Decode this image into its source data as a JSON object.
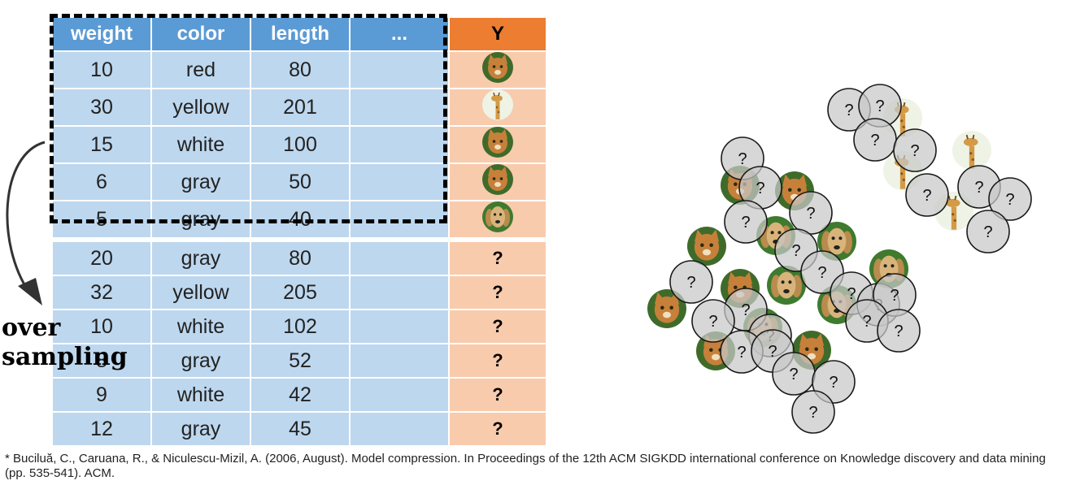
{
  "table": {
    "headers": [
      "weight",
      "color",
      "length",
      "...",
      "Y"
    ],
    "labeled_rows": [
      {
        "weight": "10",
        "color": "red",
        "length": "80",
        "y": "cat"
      },
      {
        "weight": "30",
        "color": "yellow",
        "length": "201",
        "y": "giraffe"
      },
      {
        "weight": "15",
        "color": "white",
        "length": "100",
        "y": "cat"
      },
      {
        "weight": "6",
        "color": "gray",
        "length": "50",
        "y": "cat"
      },
      {
        "weight": "5",
        "color": "gray",
        "length": "40",
        "y": "dog"
      }
    ],
    "unlabeled_rows": [
      {
        "weight": "20",
        "color": "gray",
        "length": "80",
        "y": "?"
      },
      {
        "weight": "32",
        "color": "yellow",
        "length": "205",
        "y": "?"
      },
      {
        "weight": "10",
        "color": "white",
        "length": "102",
        "y": "?"
      },
      {
        "weight": "8",
        "color": "gray",
        "length": "52",
        "y": "?"
      },
      {
        "weight": "9",
        "color": "white",
        "length": "42",
        "y": "?"
      },
      {
        "weight": "12",
        "color": "gray",
        "length": "45",
        "y": "?"
      }
    ]
  },
  "oversampling": {
    "line1": "over",
    "line2": "sampling"
  },
  "unknown_mark": "?",
  "colors": {
    "header": "#5b9bd5",
    "header_y": "#ed7d31",
    "cell": "#bdd7ee",
    "cell_y": "#f8cbad",
    "unknown_fill": "#c8c8c8",
    "cat": "#c7803a",
    "dog": "#d9b47a",
    "giraffe": "#d49a46"
  },
  "scatter": {
    "animal_icons": [
      {
        "kind": "cat",
        "x": 130,
        "y": 133
      },
      {
        "kind": "cat",
        "x": 89,
        "y": 208
      },
      {
        "kind": "cat",
        "x": 40,
        "y": 285
      },
      {
        "kind": "cat",
        "x": 197,
        "y": 140
      },
      {
        "kind": "cat",
        "x": 218,
        "y": 336
      },
      {
        "kind": "cat",
        "x": 100,
        "y": 337
      },
      {
        "kind": "cat",
        "x": 130,
        "y": 260
      },
      {
        "kind": "dog",
        "x": 174,
        "y": 195
      },
      {
        "kind": "dog",
        "x": 249,
        "y": 202
      },
      {
        "kind": "dog",
        "x": 187,
        "y": 256
      },
      {
        "kind": "dog",
        "x": 313,
        "y": 236
      },
      {
        "kind": "dog",
        "x": 249,
        "y": 280
      },
      {
        "kind": "dog",
        "x": 158,
        "y": 308
      },
      {
        "kind": "giraffe",
        "x": 330,
        "y": 50
      },
      {
        "kind": "giraffe",
        "x": 415,
        "y": 90
      },
      {
        "kind": "giraffe",
        "x": 330,
        "y": 115
      },
      {
        "kind": "giraffe",
        "x": 393,
        "y": 165
      }
    ],
    "unknown_circles": [
      {
        "x": 133,
        "y": 100
      },
      {
        "x": 155,
        "y": 136
      },
      {
        "x": 137,
        "y": 178
      },
      {
        "x": 217,
        "y": 167
      },
      {
        "x": 199,
        "y": 213
      },
      {
        "x": 231,
        "y": 240
      },
      {
        "x": 267,
        "y": 266
      },
      {
        "x": 300,
        "y": 280
      },
      {
        "x": 320,
        "y": 268
      },
      {
        "x": 286,
        "y": 300
      },
      {
        "x": 325,
        "y": 312
      },
      {
        "x": 70,
        "y": 252
      },
      {
        "x": 137,
        "y": 286
      },
      {
        "x": 97,
        "y": 300
      },
      {
        "x": 167,
        "y": 318
      },
      {
        "x": 132,
        "y": 338
      },
      {
        "x": 170,
        "y": 337
      },
      {
        "x": 196,
        "y": 365
      },
      {
        "x": 245,
        "y": 375
      },
      {
        "x": 220,
        "y": 412
      },
      {
        "x": 264,
        "y": 40
      },
      {
        "x": 302,
        "y": 35
      },
      {
        "x": 296,
        "y": 77
      },
      {
        "x": 345,
        "y": 90
      },
      {
        "x": 360,
        "y": 145
      },
      {
        "x": 424,
        "y": 135
      },
      {
        "x": 462,
        "y": 150
      },
      {
        "x": 435,
        "y": 190
      }
    ]
  },
  "citation": "* Buciluă, C., Caruana, R., & Niculescu-Mizil, A. (2006, August). Model compression. In Proceedings of the 12th ACM SIGKDD international conference on Knowledge discovery and data mining (pp. 535-541). ACM."
}
